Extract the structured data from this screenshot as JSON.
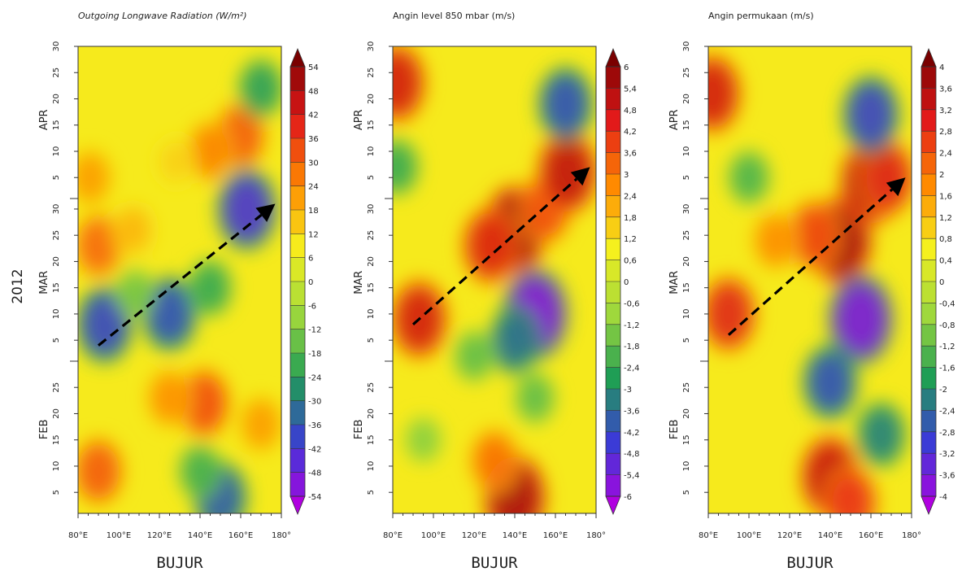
{
  "year_label": "2012",
  "chart_data": [
    {
      "type": "heatmap",
      "title": "Outgoing Longwave Radiation (W/m²)",
      "title_italic": true,
      "xlabel": "BUJUR",
      "x_ticks": [
        "80°E",
        "100°E",
        "120°E",
        "140°E",
        "160°E",
        "180°"
      ],
      "xlim": [
        80,
        180
      ],
      "time_range": [
        "2012-02-01",
        "2012-04-30"
      ],
      "y_month_labels": [
        "FEB",
        "MAR",
        "APR"
      ],
      "y_day_ticks": {
        "FEB": [
          "5",
          "10",
          "15",
          "20",
          "25"
        ],
        "MAR": [
          "5",
          "10",
          "15",
          "20",
          "25",
          "30"
        ],
        "APR": [
          "5",
          "10",
          "15",
          "20",
          "25",
          "30"
        ]
      },
      "colorbar_labels": [
        "54",
        "48",
        "42",
        "36",
        "30",
        "24",
        "18",
        "12",
        "6",
        "0",
        "-6",
        "-12",
        "-18",
        "-24",
        "-30",
        "-36",
        "-42",
        "-48",
        "-54"
      ],
      "color_range": [
        -54,
        54
      ],
      "palette": [
        "#b000e0",
        "#3b3bd6",
        "#1f9e55",
        "#9fd83c",
        "#f5f01e",
        "#ff8a00",
        "#e21a1a",
        "#7a0000"
      ],
      "arrow": {
        "from": [
          "90°E",
          "2012-03-04"
        ],
        "to": [
          "177°E",
          "2012-03-31"
        ]
      },
      "features": [
        {
          "lon": 90,
          "date": "2012-03-23",
          "value": 30
        },
        {
          "lon": 86,
          "date": "2012-04-05",
          "value": 22
        },
        {
          "lon": 107,
          "date": "2012-03-26",
          "value": 18
        },
        {
          "lon": 160,
          "date": "2012-04-13",
          "value": 32
        },
        {
          "lon": 145,
          "date": "2012-04-10",
          "value": 26
        },
        {
          "lon": 128,
          "date": "2012-04-08",
          "value": 14
        },
        {
          "lon": 163,
          "date": "2012-03-30",
          "value": -44
        },
        {
          "lon": 170,
          "date": "2012-04-22",
          "value": -24
        },
        {
          "lon": 93,
          "date": "2012-03-08",
          "value": -40
        },
        {
          "lon": 125,
          "date": "2012-03-10",
          "value": -38
        },
        {
          "lon": 145,
          "date": "2012-03-15",
          "value": -22
        },
        {
          "lon": 108,
          "date": "2012-03-14",
          "value": -14
        },
        {
          "lon": 142,
          "date": "2012-02-22",
          "value": 34
        },
        {
          "lon": 125,
          "date": "2012-02-23",
          "value": 24
        },
        {
          "lon": 170,
          "date": "2012-02-18",
          "value": 22
        },
        {
          "lon": 90,
          "date": "2012-02-09",
          "value": 32
        },
        {
          "lon": 150,
          "date": "2012-02-04",
          "value": -36
        },
        {
          "lon": 140,
          "date": "2012-02-09",
          "value": -20
        }
      ]
    },
    {
      "type": "heatmap",
      "title": "Angin level 850 mbar (m/s)",
      "title_italic": false,
      "xlabel": "BUJUR",
      "x_ticks": [
        "80°E",
        "100°E",
        "120°E",
        "140°E",
        "160°E",
        "180°"
      ],
      "xlim": [
        80,
        180
      ],
      "time_range": [
        "2012-02-01",
        "2012-04-30"
      ],
      "y_month_labels": [
        "FEB",
        "MAR",
        "APR"
      ],
      "y_day_ticks": {
        "FEB": [
          "5",
          "10",
          "15",
          "20",
          "25"
        ],
        "MAR": [
          "5",
          "10",
          "15",
          "20",
          "25",
          "30"
        ],
        "APR": [
          "5",
          "10",
          "15",
          "20",
          "25",
          "30"
        ]
      },
      "colorbar_labels": [
        "6",
        "5,4",
        "4,8",
        "4,2",
        "3,6",
        "3",
        "2,4",
        "1,8",
        "1,2",
        "0,6",
        "0",
        "-0,6",
        "-1,2",
        "-1,8",
        "-2,4",
        "-3",
        "-3,6",
        "-4,2",
        "-4,8",
        "-5,4",
        "-6"
      ],
      "color_range": [
        -6,
        6
      ],
      "palette": [
        "#b000e0",
        "#3b3bd6",
        "#1f9e55",
        "#9fd83c",
        "#f5f01e",
        "#ff8a00",
        "#e21a1a",
        "#7a0000"
      ],
      "arrow": {
        "from": [
          "90°E",
          "2012-03-08"
        ],
        "to": [
          "177°E",
          "2012-04-07"
        ]
      },
      "features": [
        {
          "lon": 82,
          "date": "2012-04-23",
          "value": 4.8
        },
        {
          "lon": 140,
          "date": "2012-03-26",
          "value": 5.8
        },
        {
          "lon": 128,
          "date": "2012-03-23",
          "value": 4.6
        },
        {
          "lon": 155,
          "date": "2012-03-30",
          "value": 3.8
        },
        {
          "lon": 166,
          "date": "2012-04-06",
          "value": 5.2
        },
        {
          "lon": 93,
          "date": "2012-03-09",
          "value": 4.8
        },
        {
          "lon": 150,
          "date": "2012-03-10",
          "value": -5.8
        },
        {
          "lon": 140,
          "date": "2012-03-05",
          "value": -3.6
        },
        {
          "lon": 165,
          "date": "2012-04-19",
          "value": -4.2
        },
        {
          "lon": 120,
          "date": "2012-03-02",
          "value": -1.8
        },
        {
          "lon": 82,
          "date": "2012-04-07",
          "value": -2.4
        },
        {
          "lon": 140,
          "date": "2012-02-04",
          "value": 5.6
        },
        {
          "lon": 130,
          "date": "2012-02-11",
          "value": 3.2
        },
        {
          "lon": 150,
          "date": "2012-02-23",
          "value": -1.8
        },
        {
          "lon": 95,
          "date": "2012-02-15",
          "value": -1.2
        }
      ]
    },
    {
      "type": "heatmap",
      "title": "Angin permukaan (m/s)",
      "title_italic": false,
      "xlabel": "BUJUR",
      "x_ticks": [
        "80°E",
        "100°E",
        "120°E",
        "140°E",
        "160°E",
        "180°"
      ],
      "xlim": [
        80,
        180
      ],
      "time_range": [
        "2012-02-01",
        "2012-04-30"
      ],
      "y_month_labels": [
        "FEB",
        "MAR",
        "APR"
      ],
      "y_day_ticks": {
        "FEB": [
          "5",
          "10",
          "15",
          "20",
          "25"
        ],
        "MAR": [
          "5",
          "10",
          "15",
          "20",
          "25",
          "30"
        ],
        "APR": [
          "5",
          "10",
          "15",
          "20",
          "25",
          "30"
        ]
      },
      "colorbar_labels": [
        "4",
        "3,6",
        "3,2",
        "2,8",
        "2,4",
        "2",
        "1,6",
        "1,2",
        "0,8",
        "0,4",
        "0",
        "-0,4",
        "-0,8",
        "-1,2",
        "-1,6",
        "-2",
        "-2,4",
        "-2,8",
        "-3,2",
        "-3,6",
        "-4"
      ],
      "color_range": [
        -4,
        4
      ],
      "palette": [
        "#b000e0",
        "#3b3bd6",
        "#1f9e55",
        "#9fd83c",
        "#f5f01e",
        "#ff8a00",
        "#e21a1a",
        "#7a0000"
      ],
      "arrow": {
        "from": [
          "90°E",
          "2012-03-06"
        ],
        "to": [
          "177°E",
          "2012-04-05"
        ]
      },
      "features": [
        {
          "lon": 82,
          "date": "2012-04-21",
          "value": 3.2
        },
        {
          "lon": 145,
          "date": "2012-03-24",
          "value": 3.8
        },
        {
          "lon": 132,
          "date": "2012-03-25",
          "value": 2.6
        },
        {
          "lon": 160,
          "date": "2012-04-04",
          "value": 3.6
        },
        {
          "lon": 168,
          "date": "2012-04-05",
          "value": 3.0
        },
        {
          "lon": 113,
          "date": "2012-03-24",
          "value": 1.8
        },
        {
          "lon": 90,
          "date": "2012-03-10",
          "value": 3.0
        },
        {
          "lon": 155,
          "date": "2012-03-09",
          "value": -3.8
        },
        {
          "lon": 140,
          "date": "2012-02-26",
          "value": -2.8
        },
        {
          "lon": 160,
          "date": "2012-04-17",
          "value": -3.0
        },
        {
          "lon": 100,
          "date": "2012-04-05",
          "value": -1.4
        },
        {
          "lon": 140,
          "date": "2012-02-08",
          "value": 3.4
        },
        {
          "lon": 150,
          "date": "2012-02-03",
          "value": 2.8
        },
        {
          "lon": 165,
          "date": "2012-02-16",
          "value": -2.2
        }
      ]
    }
  ]
}
